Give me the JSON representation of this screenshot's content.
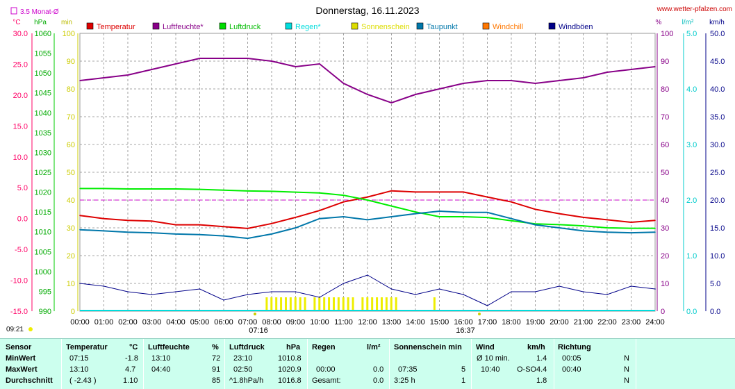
{
  "header": {
    "title": "Donnerstag, 16.11.2023",
    "site": "www.wetter-pfalzen.com",
    "monthly_avg_label": "3.5 Monat-Ø",
    "time_label": "09:21"
  },
  "legend": [
    {
      "name": "Temperatur",
      "color": "#dd0000"
    },
    {
      "name": "Luftfeuchte*",
      "color": "#880088"
    },
    {
      "name": "Luftdruck",
      "color": "#00dd00"
    },
    {
      "name": "Regen*",
      "color": "#00dddd"
    },
    {
      "name": "Sonnenschein",
      "color": "#dddd00"
    },
    {
      "name": "Taupunkt",
      "color": "#0077aa"
    },
    {
      "name": "Windchill",
      "color": "#ff7700"
    },
    {
      "name": "Windböen",
      "color": "#000088"
    }
  ],
  "axes": {
    "temp": {
      "unit": "°C",
      "ticks": [
        "30.0",
        "25.0",
        "20.0",
        "15.0",
        "10.0",
        "5.0",
        "0.0",
        "-5.0",
        "-10.0",
        "-15.0"
      ],
      "color": "#ff0066"
    },
    "pressure": {
      "unit": "hPa",
      "ticks": [
        "1060",
        "1055",
        "1050",
        "1045",
        "1040",
        "1035",
        "1030",
        "1025",
        "1020",
        "1015",
        "1010",
        "1005",
        "1000",
        "995",
        "990"
      ],
      "color": "#00cc00"
    },
    "sun": {
      "unit": "min",
      "ticks": [
        "100",
        "90",
        "80",
        "70",
        "60",
        "50",
        "40",
        "30",
        "20",
        "10",
        "0"
      ],
      "color": "#cccc00"
    },
    "humidity": {
      "unit": "%",
      "ticks": [
        "100",
        "90",
        "80",
        "70",
        "60",
        "50",
        "40",
        "30",
        "20",
        "10",
        "0"
      ],
      "color": "#880088"
    },
    "rain": {
      "unit": "l/m²",
      "ticks": [
        "5.0",
        "4.0",
        "3.0",
        "2.0",
        "1.0",
        "0.0"
      ],
      "color": "#00cccc"
    },
    "wind": {
      "unit": "km/h",
      "ticks": [
        "50.0",
        "45.0",
        "40.0",
        "35.0",
        "30.0",
        "25.0",
        "20.0",
        "15.0",
        "10.0",
        "5.0",
        "0.0"
      ],
      "color": "#000088"
    },
    "x": [
      "00:00",
      "01:00",
      "02:00",
      "03:00",
      "04:00",
      "05:00",
      "06:00",
      "07:00",
      "08:00",
      "09:00",
      "10:00",
      "11:00",
      "12:00",
      "13:00",
      "14:00",
      "15:00",
      "16:00",
      "17:00",
      "18:00",
      "19:00",
      "20:00",
      "21:00",
      "22:00",
      "23:00",
      "24:00"
    ],
    "sunrise": "07:16",
    "sunset": "16:37"
  },
  "chart_data": {
    "type": "line",
    "x_hours": [
      0,
      1,
      2,
      3,
      4,
      5,
      6,
      7,
      8,
      9,
      10,
      11,
      12,
      13,
      14,
      15,
      16,
      17,
      18,
      19,
      20,
      21,
      22,
      23,
      24
    ],
    "series": [
      {
        "name": "Temperatur",
        "unit": "°C",
        "values": [
          0.5,
          0.0,
          -0.3,
          -0.4,
          -1.0,
          -1.0,
          -1.3,
          -1.6,
          -0.8,
          0.2,
          1.3,
          2.7,
          3.5,
          4.5,
          4.3,
          4.3,
          4.3,
          3.5,
          2.7,
          1.5,
          0.8,
          0.2,
          -0.2,
          -0.6,
          -0.3
        ]
      },
      {
        "name": "Luftfeuchte*",
        "unit": "%",
        "values": [
          83,
          84,
          85,
          87,
          89,
          91,
          91,
          91,
          90,
          88,
          89,
          82,
          78,
          75,
          78,
          80,
          82,
          83,
          83,
          82,
          83,
          84,
          86,
          87,
          88
        ]
      },
      {
        "name": "Luftdruck",
        "unit": "hPa",
        "values": [
          1020.9,
          1020.9,
          1020.8,
          1020.8,
          1020.8,
          1020.7,
          1020.5,
          1020.3,
          1020.2,
          1020.0,
          1019.8,
          1019.2,
          1018.0,
          1016.5,
          1015.0,
          1013.8,
          1013.8,
          1013.6,
          1012.8,
          1012.0,
          1011.8,
          1011.5,
          1011.0,
          1010.9,
          1010.9
        ]
      },
      {
        "name": "Taupunkt",
        "unit": "°C",
        "values": [
          -1.8,
          -2.0,
          -2.2,
          -2.3,
          -2.5,
          -2.6,
          -2.8,
          -3.2,
          -2.5,
          -1.5,
          0.0,
          0.3,
          -0.2,
          0.3,
          0.8,
          1.2,
          1.0,
          1.0,
          0.0,
          -1.0,
          -1.5,
          -2.0,
          -2.2,
          -2.3,
          -2.2
        ]
      },
      {
        "name": "Windböen",
        "unit": "km/h",
        "values": [
          5.0,
          4.5,
          3.5,
          3.0,
          3.5,
          4.0,
          2.0,
          3.0,
          3.5,
          3.5,
          2.5,
          5.0,
          6.5,
          4.0,
          3.0,
          4.0,
          3.0,
          1.0,
          3.5,
          3.5,
          4.5,
          3.5,
          3.0,
          4.5,
          4.0
        ]
      }
    ],
    "monthly_avg_humidity_pct": 40,
    "sunshine_minutes_per_slot": "≈10 (07:45–13:15)"
  },
  "table": {
    "headers": {
      "sensor": "Sensor",
      "temp": "Temperatur",
      "temp_unit": "°C",
      "hum": "Luftfeuchte",
      "hum_unit": "%",
      "press": "Luftdruck",
      "press_unit": "hPa",
      "rain": "Regen",
      "rain_unit": "l/m²",
      "sun": "Sonnenschein min",
      "wind": "Wind",
      "wind_unit": "km/h",
      "dir": "Richtung"
    },
    "rows": [
      {
        "label": "MinWert",
        "temp_time": "07:15",
        "temp_val": "-1.8",
        "hum_time": "13:10",
        "hum_val": "72",
        "press_time": "23:10",
        "press_val": "1010.8",
        "rain_time": "",
        "rain_val": "",
        "sun_time": "",
        "sun_val": "",
        "wind_label": "Ø 10 min.",
        "wind_dir": "",
        "wind_val": "1.4",
        "dir_time": "00:05",
        "dir_val": "N"
      },
      {
        "label": "MaxWert",
        "temp_time": "13:10",
        "temp_val": "4.7",
        "hum_time": "04:40",
        "hum_val": "91",
        "press_time": "02:50",
        "press_val": "1020.9",
        "rain_time": "00:00",
        "rain_val": "0.0",
        "sun_time": "07:35",
        "sun_val": "5",
        "wind_label": "10:40",
        "wind_dir": "O-SO",
        "wind_val": "4.4",
        "dir_time": "00:40",
        "dir_val": "N"
      },
      {
        "label": "Durchschnitt",
        "temp_time": "( -2.43 )",
        "temp_val": "1.10",
        "hum_time": "",
        "hum_val": "85",
        "press_time": "^1.8hPa/h",
        "press_val": "1016.8",
        "rain_time": "Gesamt:",
        "rain_val": "0.0",
        "sun_time": "3:25 h",
        "sun_val": "1",
        "wind_label": "",
        "wind_dir": "",
        "wind_val": "1.8",
        "dir_time": "",
        "dir_val": "N"
      }
    ]
  }
}
